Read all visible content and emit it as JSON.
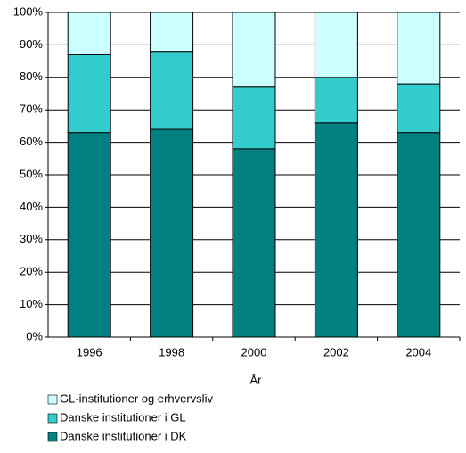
{
  "chart_data": {
    "type": "stacked_bar",
    "x_label": "År",
    "categories": [
      "1996",
      "1998",
      "2000",
      "2002",
      "2004"
    ],
    "series": [
      {
        "name": "Danske institutioner i DK",
        "color": "#008080",
        "values": [
          63,
          64,
          58,
          66,
          63
        ]
      },
      {
        "name": "Danske institutioner i GL",
        "color": "#33cccc",
        "values": [
          24,
          24,
          19,
          14,
          15
        ]
      },
      {
        "name": "GL-institutioner og erhvervsliv",
        "color": "#ccffff",
        "values": [
          13,
          12,
          23,
          20,
          22
        ]
      }
    ],
    "ylim": [
      0,
      100
    ],
    "yticks": [
      {
        "value": 0,
        "label": "0%"
      },
      {
        "value": 10,
        "label": "10%"
      },
      {
        "value": 20,
        "label": "20%"
      },
      {
        "value": 30,
        "label": "30%"
      },
      {
        "value": 40,
        "label": "40%"
      },
      {
        "value": 50,
        "label": "50%"
      },
      {
        "value": 60,
        "label": "60%"
      },
      {
        "value": 70,
        "label": "70%"
      },
      {
        "value": 80,
        "label": "80%"
      },
      {
        "value": 90,
        "label": "90%"
      },
      {
        "value": 100,
        "label": "100%"
      }
    ],
    "grid": true
  }
}
